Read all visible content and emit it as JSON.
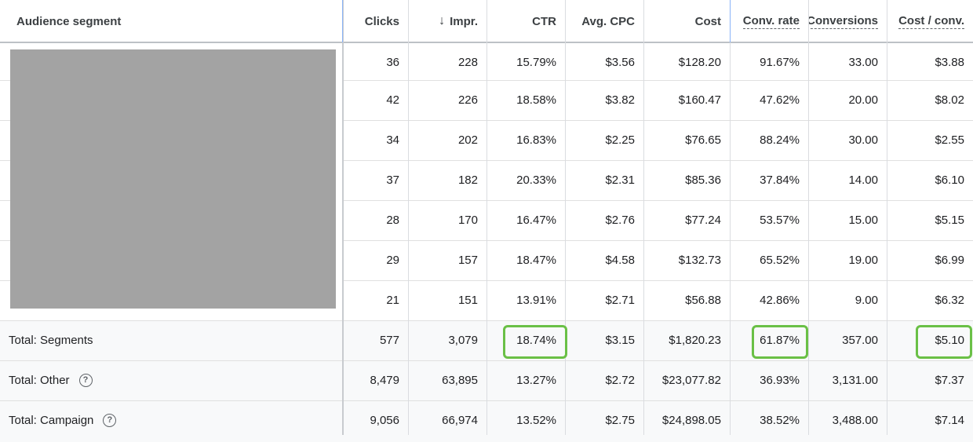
{
  "columns": [
    {
      "key": "segment",
      "label": "Audience segment"
    },
    {
      "key": "clicks",
      "label": "Clicks"
    },
    {
      "key": "impr",
      "label": "Impr.",
      "sort_icon": "arrow-down-icon",
      "sort_glyph": "↓"
    },
    {
      "key": "ctr",
      "label": "CTR"
    },
    {
      "key": "avg_cpc",
      "label": "Avg. CPC"
    },
    {
      "key": "cost",
      "label": "Cost"
    },
    {
      "key": "conv_rate",
      "label": "Conv. rate"
    },
    {
      "key": "conversions",
      "label": "Conversions"
    },
    {
      "key": "cost_conv",
      "label": "Cost / conv."
    }
  ],
  "rows": [
    {
      "clicks": "36",
      "impr": "228",
      "ctr": "15.79%",
      "avg_cpc": "$3.56",
      "cost": "$128.20",
      "conv_rate": "91.67%",
      "conversions": "33.00",
      "cost_conv": "$3.88"
    },
    {
      "clicks": "42",
      "impr": "226",
      "ctr": "18.58%",
      "avg_cpc": "$3.82",
      "cost": "$160.47",
      "conv_rate": "47.62%",
      "conversions": "20.00",
      "cost_conv": "$8.02"
    },
    {
      "clicks": "34",
      "impr": "202",
      "ctr": "16.83%",
      "avg_cpc": "$2.25",
      "cost": "$76.65",
      "conv_rate": "88.24%",
      "conversions": "30.00",
      "cost_conv": "$2.55"
    },
    {
      "clicks": "37",
      "impr": "182",
      "ctr": "20.33%",
      "avg_cpc": "$2.31",
      "cost": "$85.36",
      "conv_rate": "37.84%",
      "conversions": "14.00",
      "cost_conv": "$6.10"
    },
    {
      "clicks": "28",
      "impr": "170",
      "ctr": "16.47%",
      "avg_cpc": "$2.76",
      "cost": "$77.24",
      "conv_rate": "53.57%",
      "conversions": "15.00",
      "cost_conv": "$5.15"
    },
    {
      "clicks": "29",
      "impr": "157",
      "ctr": "18.47%",
      "avg_cpc": "$4.58",
      "cost": "$132.73",
      "conv_rate": "65.52%",
      "conversions": "19.00",
      "cost_conv": "$6.99"
    },
    {
      "clicks": "21",
      "impr": "151",
      "ctr": "13.91%",
      "avg_cpc": "$2.71",
      "cost": "$56.88",
      "conv_rate": "42.86%",
      "conversions": "9.00",
      "cost_conv": "$6.32"
    }
  ],
  "totals": [
    {
      "label": "Total: Segments",
      "help": false,
      "clicks": "577",
      "impr": "3,079",
      "ctr": "18.74%",
      "avg_cpc": "$3.15",
      "cost": "$1,820.23",
      "conv_rate": "61.87%",
      "conversions": "357.00",
      "cost_conv": "$5.10"
    },
    {
      "label": "Total: Other",
      "help": true,
      "clicks": "8,479",
      "impr": "63,895",
      "ctr": "13.27%",
      "avg_cpc": "$2.72",
      "cost": "$23,077.82",
      "conv_rate": "36.93%",
      "conversions": "3,131.00",
      "cost_conv": "$7.37"
    },
    {
      "label": "Total: Campaign",
      "help": true,
      "clicks": "9,056",
      "impr": "66,974",
      "ctr": "13.52%",
      "avg_cpc": "$2.75",
      "cost": "$24,898.05",
      "conv_rate": "38.52%",
      "conversions": "3,488.00",
      "cost_conv": "$7.14"
    }
  ],
  "help_icon": {
    "name": "help-circle-icon",
    "glyph": "?"
  },
  "highlight_color": "#6ac046",
  "highlighted_cells": [
    "Total: Segments CTR",
    "Total: Segments Conv. rate",
    "Total: Segments Cost / conv."
  ]
}
